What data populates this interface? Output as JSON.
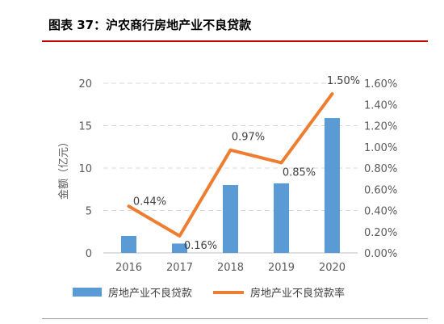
{
  "figure": {
    "title": "图表 37：沪农商行房地产业不良贷款"
  },
  "chart_data": {
    "type": "bar",
    "categories": [
      "2016",
      "2017",
      "2018",
      "2019",
      "2020"
    ],
    "series": [
      {
        "name": "房地产业不良贷款",
        "type": "bar",
        "axis": "left",
        "values": [
          2.0,
          1.1,
          8.0,
          8.2,
          15.9
        ],
        "color": "#5b9bd5"
      },
      {
        "name": "房地产业不良贷款率",
        "type": "line",
        "axis": "right",
        "values": [
          0.44,
          0.16,
          0.97,
          0.85,
          1.5
        ],
        "labels": [
          "0.44%",
          "0.16%",
          "0.97%",
          "0.85%",
          "1.50%"
        ],
        "color": "#ed7d31"
      }
    ],
    "ylabel": "金额（亿元）",
    "ylim": [
      0,
      20
    ],
    "yticks": [
      0,
      5,
      10,
      15,
      20
    ],
    "y2lim": [
      0,
      1.6
    ],
    "y2ticks": [
      "0.00%",
      "0.20%",
      "0.40%",
      "0.60%",
      "0.80%",
      "1.00%",
      "1.20%",
      "1.40%",
      "1.60%"
    ],
    "grid": true,
    "legend": "bottom"
  }
}
